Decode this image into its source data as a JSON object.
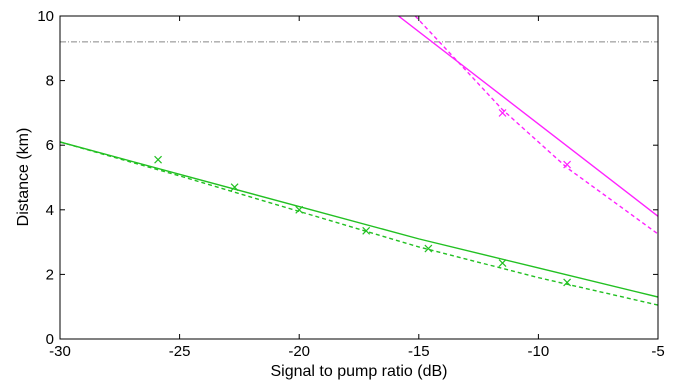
{
  "chart_data": {
    "type": "line",
    "xlabel": "Signal to pump ratio (dB)",
    "ylabel": "Distance (km)",
    "xlim": [
      -30,
      -5
    ],
    "ylim": [
      0,
      10
    ],
    "xticks": [
      -30,
      -25,
      -20,
      -15,
      -10,
      -5
    ],
    "yticks": [
      0,
      2,
      4,
      6,
      8,
      10
    ],
    "x_tick_labels": [
      "-30",
      "-25",
      "-20",
      "-15",
      "-10",
      "-5"
    ],
    "y_tick_labels": [
      "0",
      "2",
      "4",
      "6",
      "8",
      "10"
    ],
    "grid": false,
    "legend": null,
    "reference_line": {
      "y": 9.2,
      "color": "#888888",
      "style": "dash-dot"
    },
    "series": [
      {
        "kind": "solid",
        "color": "#22c022",
        "x": [
          -30,
          -25,
          -20,
          -15,
          -10,
          -5
        ],
        "y": [
          6.1,
          5.1,
          4.1,
          3.1,
          2.2,
          1.3
        ]
      },
      {
        "kind": "dashed",
        "color": "#22c022",
        "x": [
          -30,
          -25,
          -20,
          -15,
          -10,
          -5
        ],
        "y": [
          6.1,
          5.05,
          3.95,
          2.85,
          1.9,
          1.05
        ]
      },
      {
        "kind": "markers",
        "marker": "x",
        "color": "#22c022",
        "x": [
          -25.9,
          -22.7,
          -20.0,
          -17.2,
          -14.6,
          -11.5,
          -8.8
        ],
        "y": [
          5.55,
          4.7,
          4.0,
          3.35,
          2.8,
          2.35,
          1.75
        ]
      },
      {
        "kind": "solid",
        "color": "#ff22ff",
        "x": [
          -15.85,
          -5
        ],
        "y": [
          10,
          3.8
        ]
      },
      {
        "kind": "dashed",
        "color": "#ff22ff",
        "x": [
          -15.15,
          -11.5,
          -8.8,
          -5
        ],
        "y": [
          10,
          7.1,
          5.3,
          3.25
        ]
      },
      {
        "kind": "markers",
        "marker": "x",
        "color": "#ff22ff",
        "x": [
          -11.5,
          -8.8
        ],
        "y": [
          7.0,
          5.4
        ]
      }
    ]
  }
}
